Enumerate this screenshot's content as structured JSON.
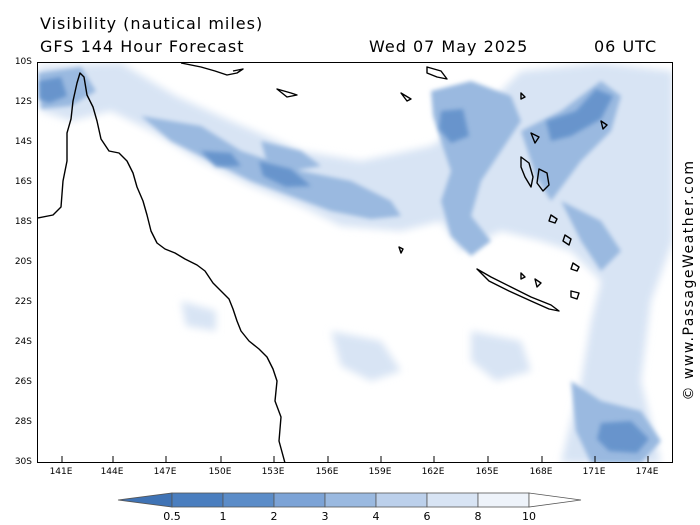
{
  "header": {
    "parameter": "Visibility (nautical miles)",
    "model": "GFS 144 Hour Forecast",
    "date": "Wed 07 May 2025",
    "time": "06 UTC"
  },
  "watermark": "© www.PassageWeather.com",
  "map": {
    "lat_labels": [
      "10S",
      "12S",
      "14S",
      "16S",
      "18S",
      "20S",
      "22S",
      "24S",
      "26S",
      "28S",
      "30S"
    ],
    "lon_labels": [
      "141E",
      "144E",
      "147E",
      "150E",
      "153E",
      "156E",
      "159E",
      "162E",
      "165E",
      "168E",
      "171E",
      "174E"
    ]
  },
  "legend": {
    "labels": [
      "0.5",
      "1",
      "2",
      "3",
      "4",
      "6",
      "8",
      "10"
    ],
    "colors": [
      "#4a7ebf",
      "#5b8cc8",
      "#7ca3d6",
      "#9ab9e0",
      "#bcd0eb",
      "#d8e4f4",
      "#eef3fa",
      "#ffffff"
    ]
  },
  "colors": {
    "land_outline": "#000000",
    "low_visibility": "#5b8cc8",
    "mid_visibility": "#9ab9e0",
    "high_visibility": "#d8e4f4"
  }
}
